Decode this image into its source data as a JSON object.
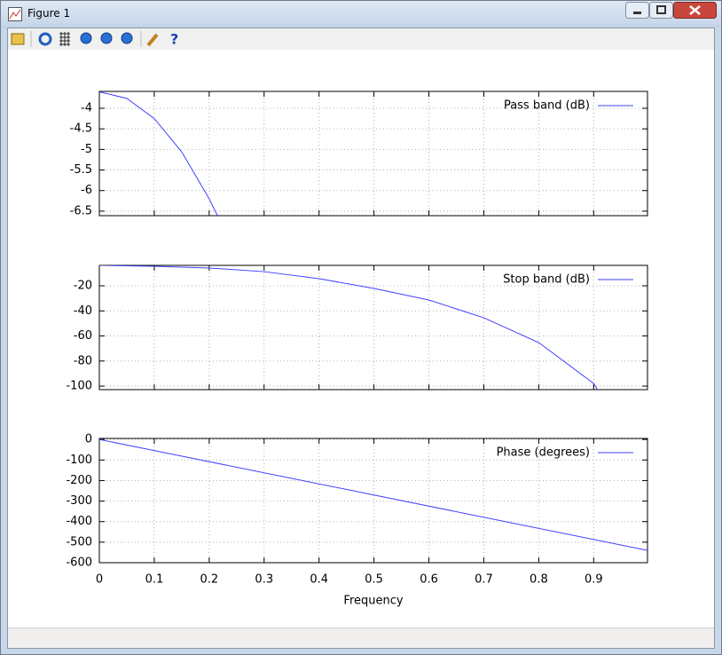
{
  "window": {
    "title": "Figure 1"
  },
  "chart_data": [
    {
      "type": "line",
      "legend": "upper right",
      "grid": true,
      "x": [
        0,
        0.05,
        0.1,
        0.15,
        0.2,
        0.215
      ],
      "series": [
        {
          "name": "Pass band (dB)",
          "color": "#4040ff",
          "values": [
            -3.6,
            -3.76,
            -4.25,
            -5.06,
            -6.2,
            -6.61
          ]
        }
      ],
      "xlim": [
        0,
        0.998
      ],
      "ylim": [
        -6.61,
        -3.59
      ],
      "xticks": [
        0,
        0.1,
        0.2,
        0.3,
        0.4,
        0.5,
        0.6,
        0.7,
        0.8,
        0.9
      ],
      "yticks": [
        -4,
        -4.5,
        -5,
        -5.5,
        -6,
        -6.5
      ]
    },
    {
      "type": "line",
      "legend": "upper right",
      "grid": true,
      "x": [
        0,
        0.1,
        0.2,
        0.3,
        0.4,
        0.5,
        0.6,
        0.7,
        0.8,
        0.9,
        0.907
      ],
      "series": [
        {
          "name": "Stop band (dB)",
          "color": "#4040ff",
          "values": [
            -3.7,
            -4.4,
            -5.8,
            -8.7,
            -14.3,
            -22.1,
            -31.3,
            -45.5,
            -65.3,
            -97.9,
            -102.8
          ]
        }
      ],
      "xlim": [
        0,
        0.998
      ],
      "ylim": [
        -102.8,
        -3.7
      ],
      "xticks": [
        0,
        0.1,
        0.2,
        0.3,
        0.4,
        0.5,
        0.6,
        0.7,
        0.8,
        0.9
      ],
      "yticks": [
        -20,
        -40,
        -60,
        -80,
        -100
      ]
    },
    {
      "type": "line",
      "legend": "upper right",
      "grid": true,
      "xlabel": "Frequency",
      "x": [
        0,
        0.998
      ],
      "series": [
        {
          "name": "Phase (degrees)",
          "color": "#4040ff",
          "values": [
            0,
            -540
          ]
        }
      ],
      "xlim": [
        0,
        0.998
      ],
      "ylim": [
        -600,
        5
      ],
      "xticks": [
        0,
        0.1,
        0.2,
        0.3,
        0.4,
        0.5,
        0.6,
        0.7,
        0.8,
        0.9
      ],
      "yticks": [
        0,
        -100,
        -200,
        -300,
        -400,
        -500,
        -600
      ]
    }
  ]
}
